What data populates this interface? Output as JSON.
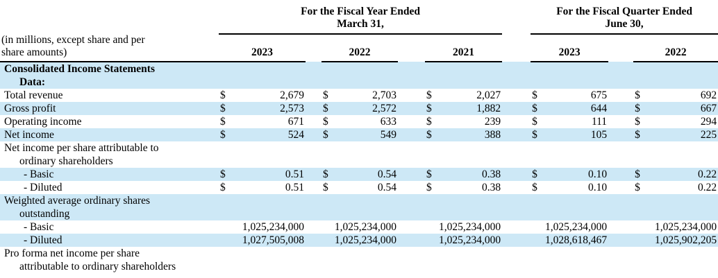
{
  "colors": {
    "band": "#cde8f6",
    "rule": "#000000",
    "text": "#000000"
  },
  "currency_symbol": "$",
  "corner_note": {
    "line1": "(in millions, except share and per",
    "line2": "share amounts)"
  },
  "column_groups": [
    {
      "title_line1": "For the Fiscal Year Ended",
      "title_line2": "March 31,",
      "columns": [
        "2023",
        "2022",
        "2021"
      ]
    },
    {
      "title_line1": "For the Fiscal Quarter Ended",
      "title_line2": "June 30,",
      "columns": [
        "2023",
        "2022"
      ]
    }
  ],
  "rows": [
    {
      "type": "section",
      "label_line1": "Consolidated Income Statements",
      "label_line2": "Data:",
      "shaded": true
    },
    {
      "type": "money",
      "label": "Total revenue",
      "values": [
        "2,679",
        "2,703",
        "2,027",
        "675",
        "692"
      ],
      "shaded": false
    },
    {
      "type": "money",
      "label": "Gross profit",
      "values": [
        "2,573",
        "2,572",
        "1,882",
        "644",
        "667"
      ],
      "shaded": true
    },
    {
      "type": "money",
      "label": "Operating income",
      "values": [
        "671",
        "633",
        "239",
        "111",
        "294"
      ],
      "shaded": false
    },
    {
      "type": "money",
      "label": "Net income",
      "values": [
        "524",
        "549",
        "388",
        "105",
        "225"
      ],
      "shaded": true
    },
    {
      "type": "subheader",
      "label_line1": "Net income per share attributable to",
      "label_line2": "ordinary shareholders",
      "shaded": false
    },
    {
      "type": "money",
      "label": "- Basic",
      "indent": true,
      "values": [
        "0.51",
        "0.54",
        "0.38",
        "0.10",
        "0.22"
      ],
      "shaded": true
    },
    {
      "type": "money",
      "label": "- Diluted",
      "indent": true,
      "values": [
        "0.51",
        "0.54",
        "0.38",
        "0.10",
        "0.22"
      ],
      "shaded": false
    },
    {
      "type": "subheader",
      "label_line1": "Weighted average ordinary shares",
      "label_line2": "outstanding",
      "shaded": true
    },
    {
      "type": "plain",
      "label": "- Basic",
      "indent": true,
      "values": [
        "1,025,234,000",
        "1,025,234,000",
        "1,025,234,000",
        "1,025,234,000",
        "1,025,234,000"
      ],
      "shaded": false
    },
    {
      "type": "plain",
      "label": "- Diluted",
      "indent": true,
      "values": [
        "1,027,505,008",
        "1,025,234,000",
        "1,025,234,000",
        "1,028,618,467",
        "1,025,902,205"
      ],
      "shaded": true
    },
    {
      "type": "subheader",
      "label_line1": "Pro forma net income per share",
      "label_line2": "attributable to ordinary shareholders",
      "shaded": false
    }
  ]
}
